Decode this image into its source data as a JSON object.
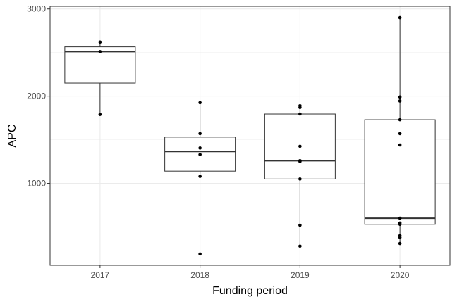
{
  "chart_data": {
    "type": "box",
    "xlabel": "Funding period",
    "ylabel": "APC",
    "categories": [
      "2017",
      "2018",
      "2019",
      "2020"
    ],
    "ylim": [
      60,
      3030
    ],
    "yticks": [
      1000,
      2000,
      3000
    ],
    "yticks_labels": [
      "1000",
      "2000",
      "3000"
    ],
    "grid": true,
    "boxes": [
      {
        "category": "2017",
        "q1": 2150,
        "median": 2510,
        "q3": 2565,
        "whisker_low": 1790,
        "whisker_high": 2620
      },
      {
        "category": "2018",
        "q1": 1140,
        "median": 1365,
        "q3": 1530,
        "whisker_low": 1080,
        "whisker_high": 1925
      },
      {
        "category": "2019",
        "q1": 1050,
        "median": 1260,
        "q3": 1795,
        "whisker_low": 280,
        "whisker_high": 1890
      },
      {
        "category": "2020",
        "q1": 530,
        "median": 600,
        "q3": 1730,
        "whisker_low": 310,
        "whisker_high": 2900
      }
    ],
    "points": [
      {
        "category": "2017",
        "values": [
          2620,
          2510,
          1790
        ]
      },
      {
        "category": "2018",
        "values": [
          1925,
          1570,
          1405,
          1330,
          1080,
          190
        ]
      },
      {
        "category": "2019",
        "values": [
          1890,
          1870,
          1795,
          1425,
          1260,
          1250,
          1050,
          520,
          280
        ]
      },
      {
        "category": "2020",
        "values": [
          2900,
          1990,
          1945,
          1730,
          1570,
          1440,
          600,
          545,
          530,
          400,
          380,
          310
        ]
      }
    ]
  }
}
